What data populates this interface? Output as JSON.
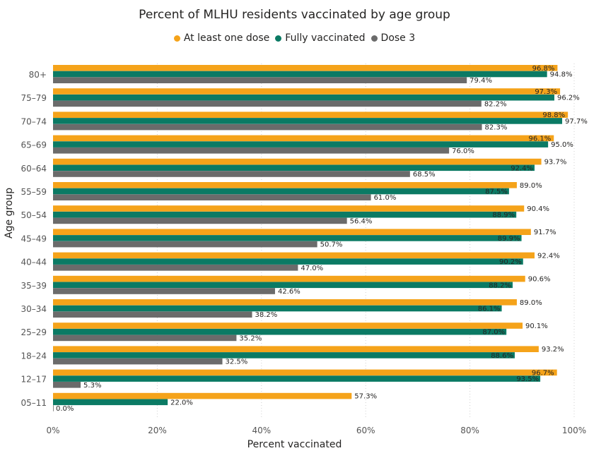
{
  "chart_data": {
    "type": "bar",
    "orientation": "horizontal",
    "title": "Percent of MLHU residents vaccinated by age group",
    "xlabel": "Percent vaccinated",
    "ylabel": "Age group",
    "xlim": [
      0,
      100
    ],
    "x_ticks": [
      "0%",
      "20%",
      "40%",
      "60%",
      "80%",
      "100%"
    ],
    "categories": [
      "80+",
      "75–79",
      "70–74",
      "65–69",
      "60–64",
      "55–59",
      "50–54",
      "45–49",
      "40–44",
      "35–39",
      "30–34",
      "25–29",
      "18–24",
      "12–17",
      "05–11"
    ],
    "series": [
      {
        "name": "At least one dose",
        "color": "#F5A31A",
        "values": [
          96.8,
          97.3,
          98.8,
          96.1,
          93.7,
          89.0,
          90.4,
          91.7,
          92.4,
          90.6,
          89.0,
          90.1,
          93.2,
          96.7,
          57.3
        ],
        "labels": [
          "96.8%",
          "97.3%",
          "98.8%",
          "96.1%",
          "93.7%",
          "89.0%",
          "90.4%",
          "91.7%",
          "92.4%",
          "90.6%",
          "89.0%",
          "90.1%",
          "93.2%",
          "96.7%",
          "57.3%"
        ]
      },
      {
        "name": "Fully vaccinated",
        "color": "#0B7A64",
        "values": [
          94.8,
          96.2,
          97.7,
          95.0,
          92.4,
          87.5,
          88.9,
          89.9,
          90.2,
          88.2,
          86.1,
          87.0,
          88.6,
          93.5,
          22.0
        ],
        "labels": [
          "94.8%",
          "96.2%",
          "97.7%",
          "95.0%",
          "92.4%",
          "87.5%",
          "88.9%",
          "89.9%",
          "90.2%",
          "88.2%",
          "86.1%",
          "87.0%",
          "88.6%",
          "93.5%",
          "22.0%"
        ]
      },
      {
        "name": "Dose 3",
        "color": "#6B6B6B",
        "values": [
          79.4,
          82.2,
          82.3,
          76.0,
          68.5,
          61.0,
          56.4,
          50.7,
          47.0,
          42.6,
          38.2,
          35.2,
          32.5,
          5.3,
          0.0
        ],
        "labels": [
          "79.4%",
          "82.2%",
          "82.3%",
          "76.0%",
          "68.5%",
          "61.0%",
          "56.4%",
          "50.7%",
          "47.0%",
          "42.6%",
          "38.2%",
          "35.2%",
          "32.5%",
          "5.3%",
          "0.0%"
        ]
      }
    ],
    "legend_position": "top-center",
    "grid": true
  }
}
